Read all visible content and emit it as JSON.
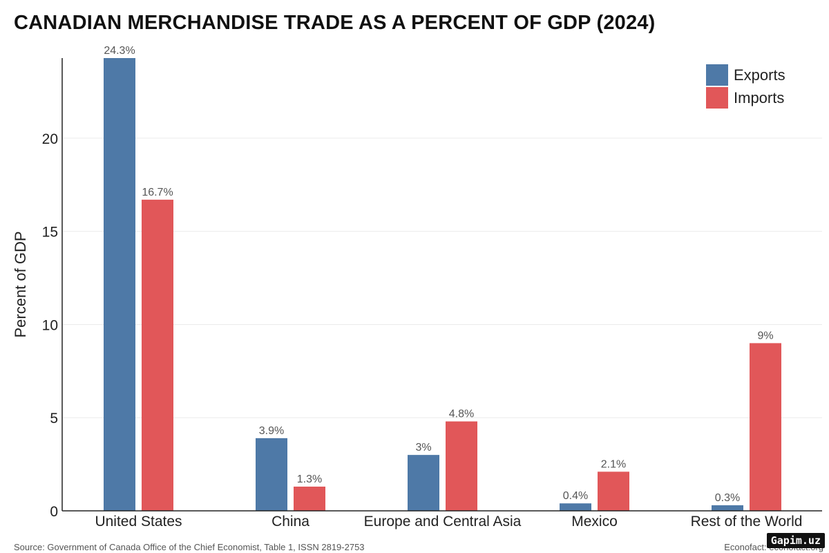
{
  "title": "CANADIAN MERCHANDISE TRADE AS A PERCENT OF GDP (2024)",
  "source": "Source: Government of Canada Office of the Chief Economist, Table 1, ISSN 2819-2753",
  "credit": "Econofact: econofact.org",
  "watermark": "Gapim.uz",
  "chart_data": {
    "type": "bar",
    "title": "CANADIAN MERCHANDISE TRADE AS A PERCENT OF GDP (2024)",
    "xlabel": "",
    "ylabel": "Percent of GDP",
    "ylim": [
      0,
      24.3
    ],
    "yticks": [
      0,
      5,
      10,
      15,
      20
    ],
    "grid": true,
    "legend_position": "top-right",
    "categories": [
      "United States",
      "China",
      "Europe and Central Asia",
      "Mexico",
      "Rest of the World"
    ],
    "series": [
      {
        "name": "Exports",
        "color": "#4e79a7",
        "values": [
          24.3,
          3.9,
          3,
          0.4,
          0.3
        ],
        "labels": [
          "24.3%",
          "3.9%",
          "3%",
          "0.4%",
          "0.3%"
        ]
      },
      {
        "name": "Imports",
        "color": "#e15759",
        "values": [
          16.7,
          1.3,
          4.8,
          2.1,
          9
        ],
        "labels": [
          "16.7%",
          "1.3%",
          "4.8%",
          "2.1%",
          "9%"
        ]
      }
    ]
  }
}
